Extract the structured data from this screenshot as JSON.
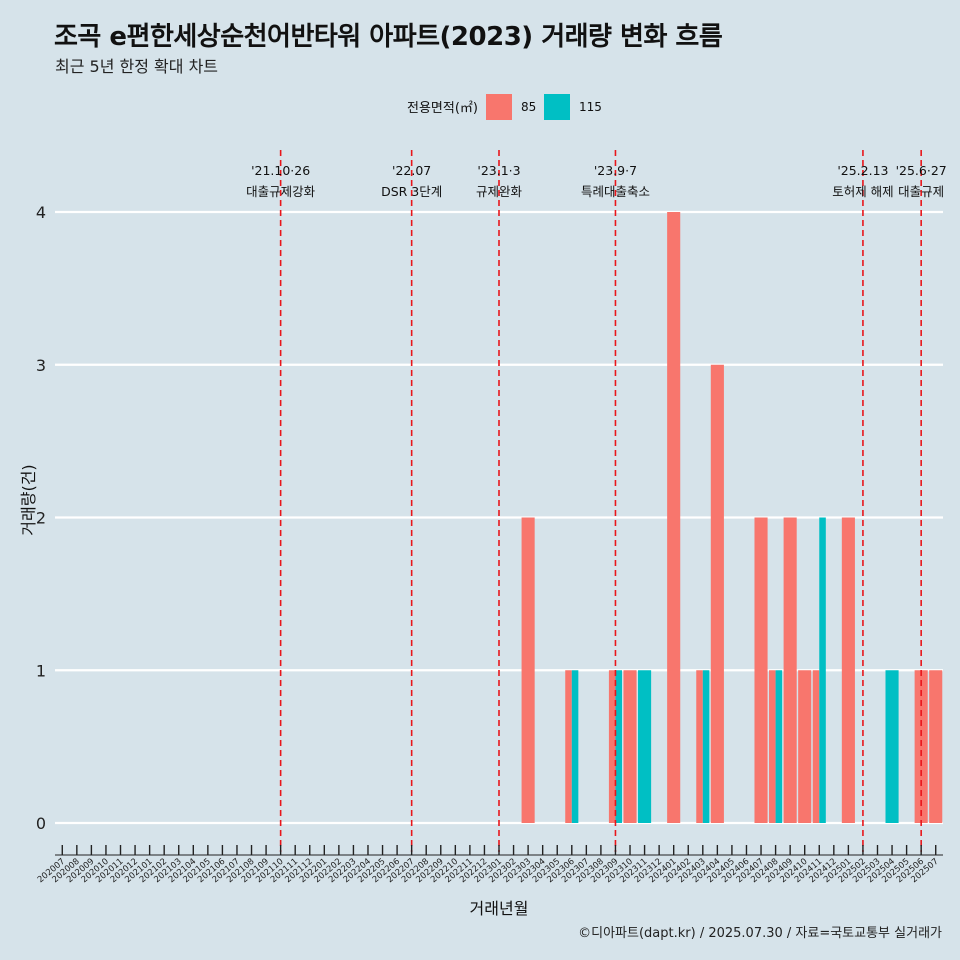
{
  "title": "조곡 e편한세상순천어반타워 아파트(2023) 거래량 변화 흐름",
  "subtitle": "최근 5년 한정 확대 차트",
  "caption": "©디아파트(dapt.kr) / 2025.07.30 / 자료=국토교통부 실거래가",
  "chart_data": {
    "type": "bar",
    "xlabel": "거래년월",
    "ylabel": "거래량(건)",
    "ylim": [
      0,
      4
    ],
    "yticks": [
      "0",
      "1",
      "2",
      "3",
      "4"
    ],
    "grid": true,
    "legend": {
      "title": "전용면적(㎡)",
      "position": "top",
      "entries": [
        {
          "label": "85",
          "color": "#F8766D"
        },
        {
          "label": "115",
          "color": "#00BFC4"
        }
      ]
    },
    "categories": [
      "202007",
      "202008",
      "202009",
      "202010",
      "202011",
      "202012",
      "202101",
      "202102",
      "202103",
      "202104",
      "202105",
      "202106",
      "202107",
      "202108",
      "202109",
      "202110",
      "202111",
      "202112",
      "202201",
      "202202",
      "202203",
      "202204",
      "202205",
      "202206",
      "202207",
      "202208",
      "202209",
      "202210",
      "202211",
      "202212",
      "202301",
      "202302",
      "202303",
      "202304",
      "202305",
      "202306",
      "202307",
      "202308",
      "202309",
      "202310",
      "202311",
      "202312",
      "202401",
      "202402",
      "202403",
      "202404",
      "202405",
      "202406",
      "202407",
      "202408",
      "202409",
      "202410",
      "202411",
      "202412",
      "202501",
      "202502",
      "202503",
      "202504",
      "202505",
      "202506",
      "202507"
    ],
    "series": [
      {
        "name": "85",
        "color": "#F8766D",
        "values": [
          0,
          0,
          0,
          0,
          0,
          0,
          0,
          0,
          0,
          0,
          0,
          0,
          0,
          0,
          0,
          0,
          0,
          0,
          0,
          0,
          0,
          0,
          0,
          0,
          0,
          0,
          0,
          0,
          0,
          0,
          0,
          0,
          2,
          0,
          0,
          1,
          0,
          0,
          1,
          1,
          0,
          0,
          4,
          0,
          1,
          3,
          0,
          0,
          2,
          1,
          2,
          1,
          1,
          0,
          2,
          0,
          0,
          0,
          0,
          1,
          1
        ]
      },
      {
        "name": "115",
        "color": "#00BFC4",
        "values": [
          0,
          0,
          0,
          0,
          0,
          0,
          0,
          0,
          0,
          0,
          0,
          0,
          0,
          0,
          0,
          0,
          0,
          0,
          0,
          0,
          0,
          0,
          0,
          0,
          0,
          0,
          0,
          0,
          0,
          0,
          0,
          0,
          0,
          0,
          0,
          1,
          0,
          0,
          1,
          0,
          1,
          0,
          0,
          0,
          1,
          0,
          0,
          0,
          0,
          1,
          0,
          0,
          2,
          0,
          0,
          0,
          0,
          1,
          0,
          0,
          0
        ]
      }
    ],
    "annotations": [
      {
        "category": "202110",
        "date": "'21.10·26",
        "text": "대출규제강화"
      },
      {
        "category": "202207",
        "date": "'22.07",
        "text": "DSR 3단계"
      },
      {
        "category": "202301",
        "date": "'23.1·3",
        "text": "규제완화"
      },
      {
        "category": "202309",
        "date": "'23.9·7",
        "text": "특례대출축소"
      },
      {
        "category": "202502",
        "date": "'25.2.13",
        "text": "토허제 해제"
      },
      {
        "category": "202506",
        "date": "'25.6·27",
        "text": "대출규제"
      }
    ]
  }
}
